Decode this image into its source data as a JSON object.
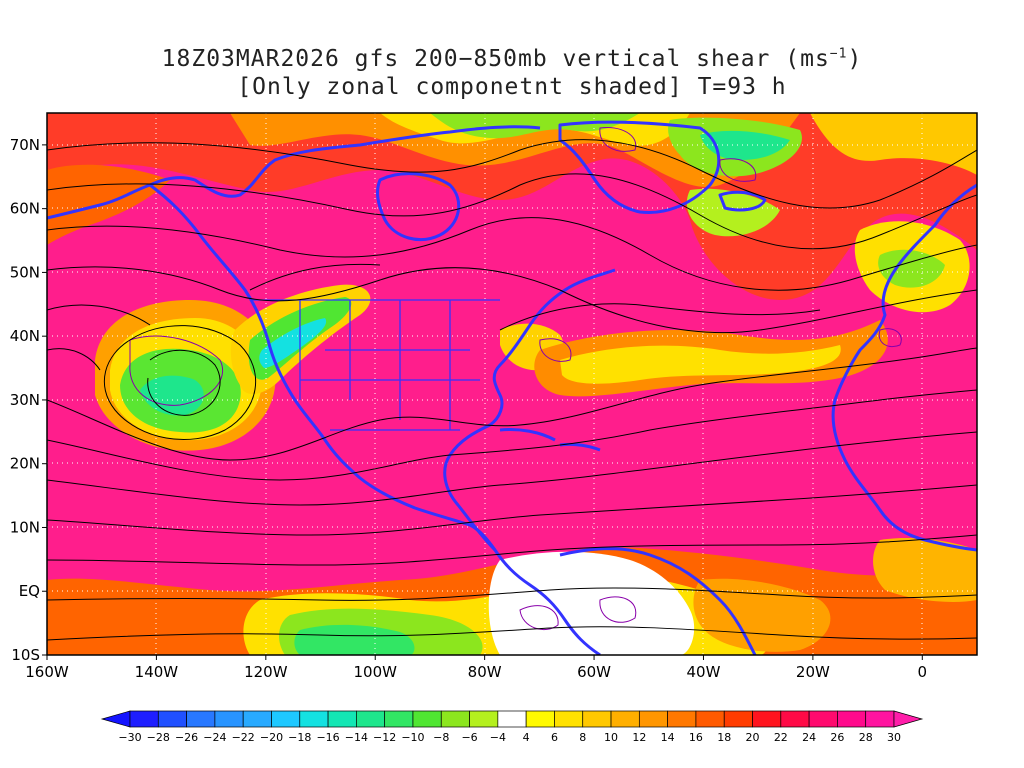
{
  "title": {
    "line1_main": "18Z03MAR2026 gfs 200−850mb vertical shear (ms",
    "line1_sup": "−1",
    "line1_end": ")",
    "line2": "[Only zonal componetnt shaded] T=93 h"
  },
  "map": {
    "lon_range": [
      -160,
      10
    ],
    "lat_range": [
      -10,
      75
    ],
    "lat_labels": [
      {
        "lat": 70,
        "label": "70N"
      },
      {
        "lat": 60,
        "label": "60N"
      },
      {
        "lat": 50,
        "label": "50N"
      },
      {
        "lat": 40,
        "label": "40N"
      },
      {
        "lat": 30,
        "label": "30N"
      },
      {
        "lat": 20,
        "label": "20N"
      },
      {
        "lat": 10,
        "label": "10N"
      },
      {
        "lat": 0,
        "label": "EQ"
      },
      {
        "lat": -10,
        "label": "10S"
      }
    ],
    "lon_labels": [
      {
        "lon": -160,
        "label": "160W"
      },
      {
        "lon": -140,
        "label": "140W"
      },
      {
        "lon": -120,
        "label": "120W"
      },
      {
        "lon": -100,
        "label": "100W"
      },
      {
        "lon": -80,
        "label": "80W"
      },
      {
        "lon": -60,
        "label": "60W"
      },
      {
        "lon": -40,
        "label": "40W"
      },
      {
        "lon": -20,
        "label": "20W"
      },
      {
        "lon": 0,
        "label": "0"
      }
    ],
    "grid": "dotted white",
    "colors": {
      "coast": "#3333ff",
      "streamline": "#000000",
      "contour": "#8800aa"
    }
  },
  "colorbar": {
    "labels": [
      "−30",
      "−28",
      "−26",
      "−24",
      "−22",
      "−20",
      "−18",
      "−16",
      "−14",
      "−12",
      "−10",
      "−8",
      "−6",
      "−4",
      "4",
      "6",
      "8",
      "10",
      "12",
      "14",
      "16",
      "18",
      "20",
      "22",
      "24",
      "26",
      "28",
      "30"
    ],
    "colors": [
      "#1e1eff",
      "#2050ff",
      "#2878ff",
      "#2894ff",
      "#28aaff",
      "#1ec8ff",
      "#14e1e1",
      "#14e6b4",
      "#1ee68c",
      "#32e664",
      "#50e632",
      "#8ce61e",
      "#b4f01e",
      "#ffffff",
      "#fffa00",
      "#ffe100",
      "#ffc800",
      "#ffaf00",
      "#ff9600",
      "#ff7800",
      "#ff5a00",
      "#ff3c00",
      "#ff141e",
      "#ff0a46",
      "#ff0a6e",
      "#ff0a8c",
      "#ff14a0"
    ],
    "low_end_color": "#1414ff",
    "high_end_color": "#ff1eaa"
  }
}
